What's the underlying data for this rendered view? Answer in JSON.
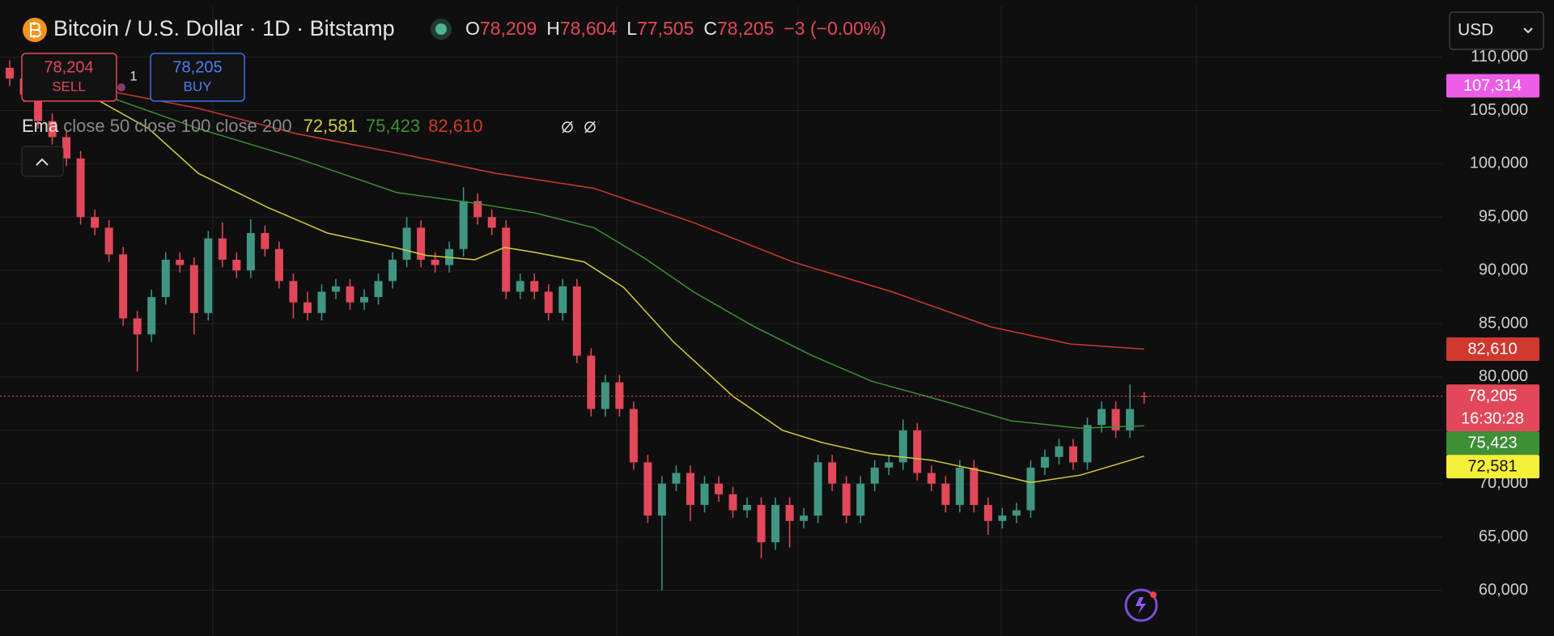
{
  "header": {
    "title": "Bitcoin / U.S. Dollar · 1D · Bitstamp",
    "stats": [
      {
        "key": "O",
        "value": "78,209"
      },
      {
        "key": "H",
        "value": "78,604"
      },
      {
        "key": "L",
        "value": "77,505"
      },
      {
        "key": "C",
        "value": "78,205"
      }
    ],
    "change": "−3 (−0.00%)"
  },
  "trade": {
    "sell_price": "78,204",
    "sell_label": "SELL",
    "quantity": "1",
    "buy_price": "78,205",
    "buy_label": "BUY"
  },
  "currency": "USD",
  "chart_data": {
    "type": "candlestick",
    "up_color": "#3f9683",
    "down_color": "#e2485a",
    "ylim": [
      57000,
      114600
    ],
    "yticks": [
      {
        "value": 110000,
        "label": "110,000"
      },
      {
        "value": 105000,
        "label": "105,000"
      },
      {
        "value": 100000,
        "label": "100,000"
      },
      {
        "value": 95000,
        "label": "95,000"
      },
      {
        "value": 90000,
        "label": "90,000"
      },
      {
        "value": 85000,
        "label": "85,000"
      },
      {
        "value": 80000,
        "label": "80,000"
      },
      {
        "value": 75000,
        "label": "75,000"
      },
      {
        "value": 70000,
        "label": "70,000"
      },
      {
        "value": 65000,
        "label": "65,000"
      },
      {
        "value": 60000,
        "label": "60,000"
      }
    ],
    "grid": true,
    "candles": [
      [
        109000,
        109700,
        107300,
        108000
      ],
      [
        108000,
        108700,
        105800,
        106500
      ],
      [
        106500,
        107200,
        103300,
        104000
      ],
      [
        104000,
        104700,
        101800,
        102500
      ],
      [
        102500,
        103200,
        99800,
        100500
      ],
      [
        100500,
        101200,
        94300,
        95000
      ],
      [
        95000,
        95700,
        93300,
        94000
      ],
      [
        94000,
        94700,
        90800,
        91500
      ],
      [
        91500,
        92200,
        84800,
        85500
      ],
      [
        85500,
        86200,
        80500,
        84000
      ],
      [
        84000,
        88200,
        83300,
        87500
      ],
      [
        87500,
        91700,
        86800,
        91000
      ],
      [
        91000,
        91700,
        89800,
        90500
      ],
      [
        90500,
        91200,
        84000,
        86000
      ],
      [
        86000,
        93700,
        85300,
        93000
      ],
      [
        93000,
        94500,
        90300,
        91000
      ],
      [
        91000,
        91700,
        89300,
        90000
      ],
      [
        90000,
        94800,
        89300,
        93500
      ],
      [
        93500,
        94200,
        91300,
        92000
      ],
      [
        92000,
        92700,
        88300,
        89000
      ],
      [
        89000,
        89700,
        85500,
        87000
      ],
      [
        87000,
        88000,
        85300,
        86000
      ],
      [
        86000,
        88700,
        85300,
        88000
      ],
      [
        88000,
        89200,
        87300,
        88500
      ],
      [
        88500,
        89200,
        86300,
        87000
      ],
      [
        87000,
        88200,
        86300,
        87500
      ],
      [
        87500,
        89700,
        86800,
        89000
      ],
      [
        89000,
        91700,
        88300,
        91000
      ],
      [
        91000,
        95000,
        90300,
        94000
      ],
      [
        94000,
        94700,
        90300,
        91000
      ],
      [
        91000,
        91700,
        89800,
        90500
      ],
      [
        90500,
        92700,
        89800,
        92000
      ],
      [
        92000,
        97800,
        91300,
        96500
      ],
      [
        96500,
        97200,
        94300,
        95000
      ],
      [
        95000,
        95700,
        93300,
        94000
      ],
      [
        94000,
        94700,
        87300,
        88000
      ],
      [
        88000,
        89700,
        87300,
        89000
      ],
      [
        89000,
        89700,
        87300,
        88000
      ],
      [
        88000,
        88700,
        85300,
        86000
      ],
      [
        86000,
        89200,
        85300,
        88500
      ],
      [
        88500,
        89200,
        81300,
        82000
      ],
      [
        82000,
        82700,
        76300,
        77000
      ],
      [
        77000,
        80200,
        76300,
        79500
      ],
      [
        79500,
        80200,
        76300,
        77000
      ],
      [
        77000,
        77700,
        71300,
        72000
      ],
      [
        72000,
        72700,
        66300,
        67000
      ],
      [
        67000,
        70700,
        60000,
        70000
      ],
      [
        70000,
        71700,
        69300,
        71000
      ],
      [
        71000,
        71700,
        66500,
        68000
      ],
      [
        68000,
        70700,
        67300,
        70000
      ],
      [
        70000,
        70700,
        68300,
        69000
      ],
      [
        69000,
        69700,
        66800,
        67500
      ],
      [
        67500,
        68700,
        66800,
        68000
      ],
      [
        68000,
        68700,
        63000,
        64500
      ],
      [
        64500,
        68700,
        63800,
        68000
      ],
      [
        68000,
        68700,
        64000,
        66500
      ],
      [
        66500,
        67700,
        65800,
        67000
      ],
      [
        67000,
        72700,
        66300,
        72000
      ],
      [
        72000,
        72700,
        69300,
        70000
      ],
      [
        70000,
        70700,
        66300,
        67000
      ],
      [
        67000,
        70700,
        66300,
        70000
      ],
      [
        70000,
        72200,
        69300,
        71500
      ],
      [
        71500,
        72700,
        70800,
        72000
      ],
      [
        72000,
        76000,
        71300,
        75000
      ],
      [
        75000,
        75700,
        70300,
        71000
      ],
      [
        71000,
        71700,
        69300,
        70000
      ],
      [
        70000,
        70700,
        67300,
        68000
      ],
      [
        68000,
        72200,
        67300,
        71500
      ],
      [
        71500,
        72200,
        67300,
        68000
      ],
      [
        68000,
        68700,
        65200,
        66500
      ],
      [
        66500,
        67700,
        65800,
        67000
      ],
      [
        67000,
        68200,
        66300,
        67500
      ],
      [
        67500,
        72200,
        66800,
        71500
      ],
      [
        71500,
        73200,
        70800,
        72500
      ],
      [
        72500,
        74200,
        71800,
        73500
      ],
      [
        73500,
        74200,
        71300,
        72000
      ],
      [
        72000,
        76200,
        71300,
        75500
      ],
      [
        75500,
        77700,
        74800,
        77000
      ],
      [
        77000,
        77700,
        74300,
        75000
      ],
      [
        75000,
        79300,
        74300,
        77000
      ],
      [
        78209,
        78604,
        77505,
        78205
      ]
    ],
    "indicator_label": "Ema",
    "series": [
      {
        "name": "close 50",
        "color": "#d4cc3c",
        "x": [
          3.5,
          9.8,
          13.3,
          18.2,
          22.4,
          27.3,
          29.4,
          32.8,
          34.9,
          37,
          40.5,
          43.3,
          46.8,
          51,
          54.5,
          57.3,
          60.8,
          65,
          69.2,
          72,
          75.5,
          80
        ],
        "values": [
          108000,
          103300,
          99100,
          95900,
          93500,
          92100,
          91400,
          91000,
          92150,
          91700,
          90800,
          88400,
          83300,
          78200,
          75000,
          73850,
          72800,
          72200,
          71000,
          70100,
          70800,
          72581
        ],
        "last_label": "72,581"
      },
      {
        "name": "close 100",
        "color": "#3f8f36",
        "x": [
          6.3,
          13.3,
          20.3,
          27.3,
          32.8,
          37,
          41.2,
          44.7,
          48.2,
          52.4,
          56.6,
          60.8,
          65.7,
          70.6,
          75.5,
          80
        ],
        "values": [
          106600,
          103300,
          100500,
          97300,
          96300,
          95400,
          94000,
          91200,
          88000,
          84800,
          82000,
          79600,
          77800,
          75900,
          75200,
          75423
        ],
        "last_label": "75,423"
      },
      {
        "name": "close 200",
        "color": "#d0382e",
        "x": [
          6.3,
          13.3,
          20.3,
          27.3,
          34.3,
          41.2,
          48.2,
          55.2,
          62.2,
          69.2,
          74.8,
          80
        ],
        "values": [
          107000,
          105200,
          102800,
          101000,
          99100,
          97700,
          94500,
          90800,
          88000,
          84700,
          83100,
          82610
        ],
        "last_label": "82,610"
      }
    ],
    "price_line": {
      "value": 78205,
      "label": "78,205",
      "countdown": "16:30:28",
      "color": "#e2485a"
    },
    "marker": {
      "value": 107314,
      "label": "107,314",
      "color": "#ee5de8"
    }
  }
}
